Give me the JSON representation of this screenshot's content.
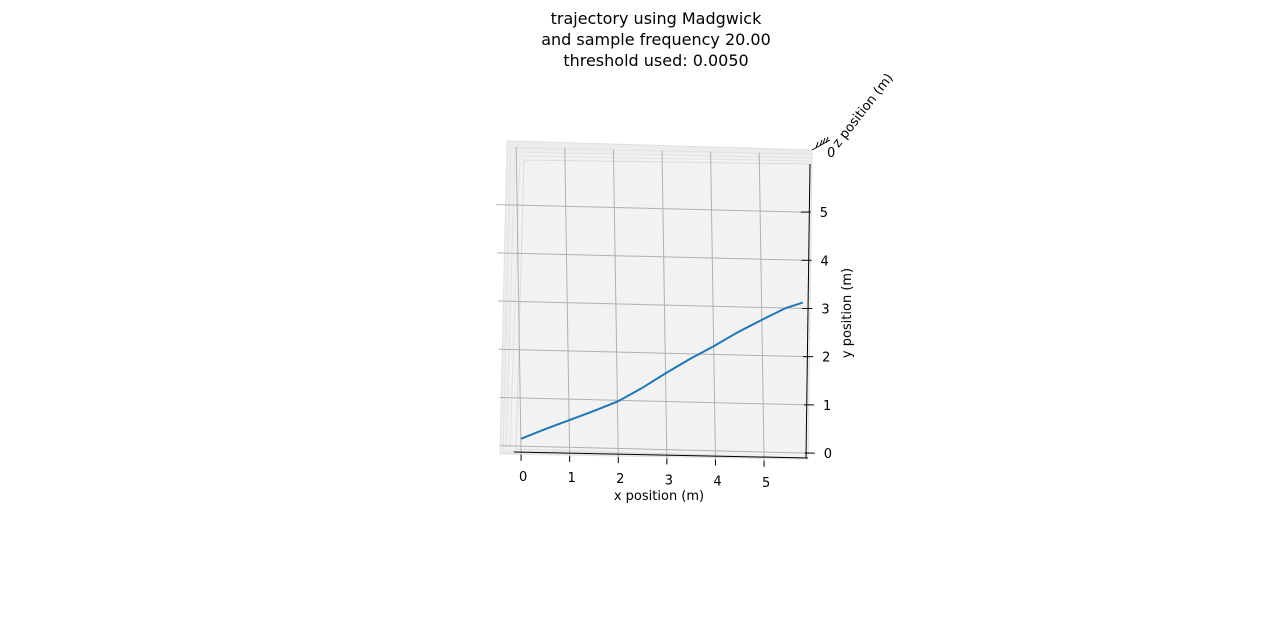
{
  "chart_data": {
    "type": "line",
    "projection": "3d",
    "title_lines": [
      "trajectory using Madgwick",
      "and sample frequency 20.00",
      "threshold used: 0.0050"
    ],
    "xlabel": "x position (m)",
    "ylabel": "y position (m)",
    "zlabel": "z position (m)",
    "xlim": [
      -0.3,
      5.9
    ],
    "ylim": [
      -0.1,
      6.0
    ],
    "xticks": [
      "0",
      "1",
      "2",
      "3",
      "4",
      "5"
    ],
    "yticks": [
      "0",
      "1",
      "2",
      "3",
      "4",
      "5"
    ],
    "zticks": [
      "0"
    ],
    "grid": true,
    "series": [
      {
        "color": "#1f77b4",
        "x": [
          0.0,
          0.5,
          1.0,
          1.5,
          2.0,
          2.5,
          3.0,
          3.5,
          4.0,
          4.5,
          5.0,
          5.5,
          5.85
        ],
        "y": [
          0.15,
          0.36,
          0.56,
          0.76,
          0.97,
          1.26,
          1.58,
          1.89,
          2.17,
          2.47,
          2.74,
          3.0,
          3.12
        ]
      }
    ]
  }
}
